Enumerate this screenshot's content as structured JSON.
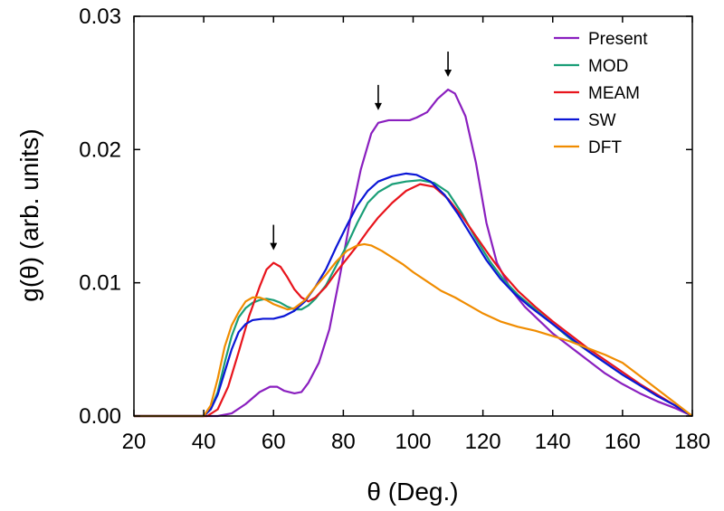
{
  "chart_data": {
    "type": "line",
    "xlabel": "θ (Deg.)",
    "ylabel": "g(θ) (arb. units)",
    "xlim": [
      20,
      180
    ],
    "ylim": [
      0,
      0.03
    ],
    "x_ticks": [
      "20",
      "40",
      "60",
      "80",
      "100",
      "120",
      "140",
      "160",
      "180"
    ],
    "y_ticks": [
      "0.00",
      "0.01",
      "0.02",
      "0.03"
    ],
    "grid": false,
    "legend_position": "top-right",
    "arrows_at_x": [
      60,
      90,
      110
    ],
    "series": [
      {
        "name": "Present",
        "color": "#8a1fbf",
        "points": [
          [
            20,
            0
          ],
          [
            44,
            0
          ],
          [
            48,
            0.0002
          ],
          [
            52,
            0.0009
          ],
          [
            56,
            0.0018
          ],
          [
            59,
            0.0022
          ],
          [
            61,
            0.0022
          ],
          [
            63,
            0.0019
          ],
          [
            66,
            0.0017
          ],
          [
            68,
            0.0018
          ],
          [
            70,
            0.0025
          ],
          [
            73,
            0.004
          ],
          [
            76,
            0.0065
          ],
          [
            79,
            0.0105
          ],
          [
            82,
            0.0148
          ],
          [
            85,
            0.0185
          ],
          [
            88,
            0.0212
          ],
          [
            90,
            0.022
          ],
          [
            93,
            0.0222
          ],
          [
            96,
            0.0222
          ],
          [
            99,
            0.0222
          ],
          [
            101,
            0.0224
          ],
          [
            104,
            0.0228
          ],
          [
            107,
            0.0238
          ],
          [
            110,
            0.0245
          ],
          [
            112,
            0.0242
          ],
          [
            115,
            0.0225
          ],
          [
            118,
            0.019
          ],
          [
            121,
            0.0145
          ],
          [
            124,
            0.0115
          ],
          [
            128,
            0.0095
          ],
          [
            132,
            0.0082
          ],
          [
            136,
            0.0072
          ],
          [
            140,
            0.0062
          ],
          [
            145,
            0.0052
          ],
          [
            150,
            0.0042
          ],
          [
            155,
            0.0032
          ],
          [
            160,
            0.0024
          ],
          [
            165,
            0.0017
          ],
          [
            170,
            0.0011
          ],
          [
            175,
            0.0006
          ],
          [
            180,
            0
          ]
        ]
      },
      {
        "name": "MOD",
        "color": "#1a9e77",
        "points": [
          [
            20,
            0
          ],
          [
            40,
            0
          ],
          [
            42,
            0.0005
          ],
          [
            44,
            0.0018
          ],
          [
            46,
            0.004
          ],
          [
            48,
            0.006
          ],
          [
            50,
            0.0074
          ],
          [
            52,
            0.0081
          ],
          [
            54,
            0.0085
          ],
          [
            56,
            0.0087
          ],
          [
            58,
            0.0088
          ],
          [
            60,
            0.0087
          ],
          [
            62,
            0.0085
          ],
          [
            64,
            0.0082
          ],
          [
            66,
            0.008
          ],
          [
            68,
            0.008
          ],
          [
            70,
            0.0083
          ],
          [
            72,
            0.0088
          ],
          [
            75,
            0.0098
          ],
          [
            78,
            0.0113
          ],
          [
            81,
            0.0128
          ],
          [
            84,
            0.0145
          ],
          [
            87,
            0.016
          ],
          [
            90,
            0.0168
          ],
          [
            94,
            0.0174
          ],
          [
            98,
            0.0176
          ],
          [
            102,
            0.0177
          ],
          [
            106,
            0.0175
          ],
          [
            110,
            0.0168
          ],
          [
            114,
            0.0152
          ],
          [
            118,
            0.0133
          ],
          [
            122,
            0.0116
          ],
          [
            126,
            0.0102
          ],
          [
            130,
            0.0091
          ],
          [
            135,
            0.008
          ],
          [
            140,
            0.0069
          ],
          [
            145,
            0.0058
          ],
          [
            150,
            0.0049
          ],
          [
            155,
            0.004
          ],
          [
            160,
            0.0031
          ],
          [
            165,
            0.0023
          ],
          [
            170,
            0.0015
          ],
          [
            175,
            0.0008
          ],
          [
            180,
            0
          ]
        ]
      },
      {
        "name": "MEAM",
        "color": "#e8141c",
        "points": [
          [
            20,
            0
          ],
          [
            41,
            0
          ],
          [
            44,
            0.0005
          ],
          [
            47,
            0.0022
          ],
          [
            50,
            0.0048
          ],
          [
            53,
            0.0075
          ],
          [
            56,
            0.0097
          ],
          [
            58,
            0.011
          ],
          [
            60,
            0.0115
          ],
          [
            62,
            0.0112
          ],
          [
            64,
            0.0104
          ],
          [
            66,
            0.0095
          ],
          [
            68,
            0.0089
          ],
          [
            70,
            0.0086
          ],
          [
            72,
            0.0089
          ],
          [
            75,
            0.0097
          ],
          [
            78,
            0.0108
          ],
          [
            81,
            0.0118
          ],
          [
            84,
            0.0128
          ],
          [
            87,
            0.0139
          ],
          [
            90,
            0.0149
          ],
          [
            94,
            0.016
          ],
          [
            98,
            0.0169
          ],
          [
            102,
            0.0174
          ],
          [
            106,
            0.0172
          ],
          [
            110,
            0.0163
          ],
          [
            114,
            0.015
          ],
          [
            118,
            0.0135
          ],
          [
            122,
            0.012
          ],
          [
            126,
            0.0106
          ],
          [
            130,
            0.0094
          ],
          [
            135,
            0.0082
          ],
          [
            140,
            0.0071
          ],
          [
            145,
            0.0061
          ],
          [
            150,
            0.0051
          ],
          [
            155,
            0.0042
          ],
          [
            160,
            0.0033
          ],
          [
            165,
            0.0024
          ],
          [
            170,
            0.0016
          ],
          [
            175,
            0.0008
          ],
          [
            180,
            0
          ]
        ]
      },
      {
        "name": "SW",
        "color": "#0b16d6",
        "points": [
          [
            20,
            0
          ],
          [
            40,
            0
          ],
          [
            42,
            0.0005
          ],
          [
            44,
            0.0016
          ],
          [
            46,
            0.0033
          ],
          [
            48,
            0.005
          ],
          [
            50,
            0.0063
          ],
          [
            52,
            0.0069
          ],
          [
            54,
            0.0072
          ],
          [
            57,
            0.0073
          ],
          [
            60,
            0.0073
          ],
          [
            63,
            0.0075
          ],
          [
            66,
            0.0079
          ],
          [
            69,
            0.0086
          ],
          [
            72,
            0.0097
          ],
          [
            75,
            0.011
          ],
          [
            78,
            0.0127
          ],
          [
            81,
            0.0143
          ],
          [
            84,
            0.0158
          ],
          [
            87,
            0.0169
          ],
          [
            90,
            0.0176
          ],
          [
            94,
            0.018
          ],
          [
            98,
            0.0182
          ],
          [
            101,
            0.0181
          ],
          [
            105,
            0.0176
          ],
          [
            109,
            0.0166
          ],
          [
            113,
            0.0151
          ],
          [
            117,
            0.0134
          ],
          [
            121,
            0.0117
          ],
          [
            125,
            0.0103
          ],
          [
            129,
            0.0092
          ],
          [
            133,
            0.0083
          ],
          [
            137,
            0.0075
          ],
          [
            141,
            0.0067
          ],
          [
            145,
            0.0059
          ],
          [
            150,
            0.0049
          ],
          [
            155,
            0.004
          ],
          [
            160,
            0.0031
          ],
          [
            165,
            0.0023
          ],
          [
            170,
            0.0015
          ],
          [
            175,
            0.0008
          ],
          [
            180,
            0
          ]
        ]
      },
      {
        "name": "DFT",
        "color": "#f08c00",
        "points": [
          [
            20,
            0
          ],
          [
            40,
            0
          ],
          [
            42,
            0.0008
          ],
          [
            44,
            0.0028
          ],
          [
            46,
            0.0052
          ],
          [
            48,
            0.0068
          ],
          [
            50,
            0.0078
          ],
          [
            52,
            0.0086
          ],
          [
            54,
            0.0089
          ],
          [
            56,
            0.0089
          ],
          [
            58,
            0.0087
          ],
          [
            60,
            0.0084
          ],
          [
            62,
            0.0082
          ],
          [
            64,
            0.008
          ],
          [
            66,
            0.0081
          ],
          [
            69,
            0.0087
          ],
          [
            72,
            0.0097
          ],
          [
            75,
            0.0106
          ],
          [
            78,
            0.0116
          ],
          [
            81,
            0.0124
          ],
          [
            84,
            0.0128
          ],
          [
            86,
            0.0129
          ],
          [
            88,
            0.0128
          ],
          [
            91,
            0.0124
          ],
          [
            94,
            0.0119
          ],
          [
            97,
            0.0114
          ],
          [
            100,
            0.0108
          ],
          [
            104,
            0.0101
          ],
          [
            108,
            0.0094
          ],
          [
            112,
            0.0089
          ],
          [
            116,
            0.0083
          ],
          [
            120,
            0.0077
          ],
          [
            125,
            0.0071
          ],
          [
            130,
            0.0067
          ],
          [
            135,
            0.0064
          ],
          [
            140,
            0.006
          ],
          [
            145,
            0.0056
          ],
          [
            150,
            0.0051
          ],
          [
            155,
            0.0046
          ],
          [
            160,
            0.004
          ],
          [
            165,
            0.003
          ],
          [
            170,
            0.002
          ],
          [
            175,
            0.001
          ],
          [
            180,
            0
          ]
        ]
      }
    ]
  }
}
